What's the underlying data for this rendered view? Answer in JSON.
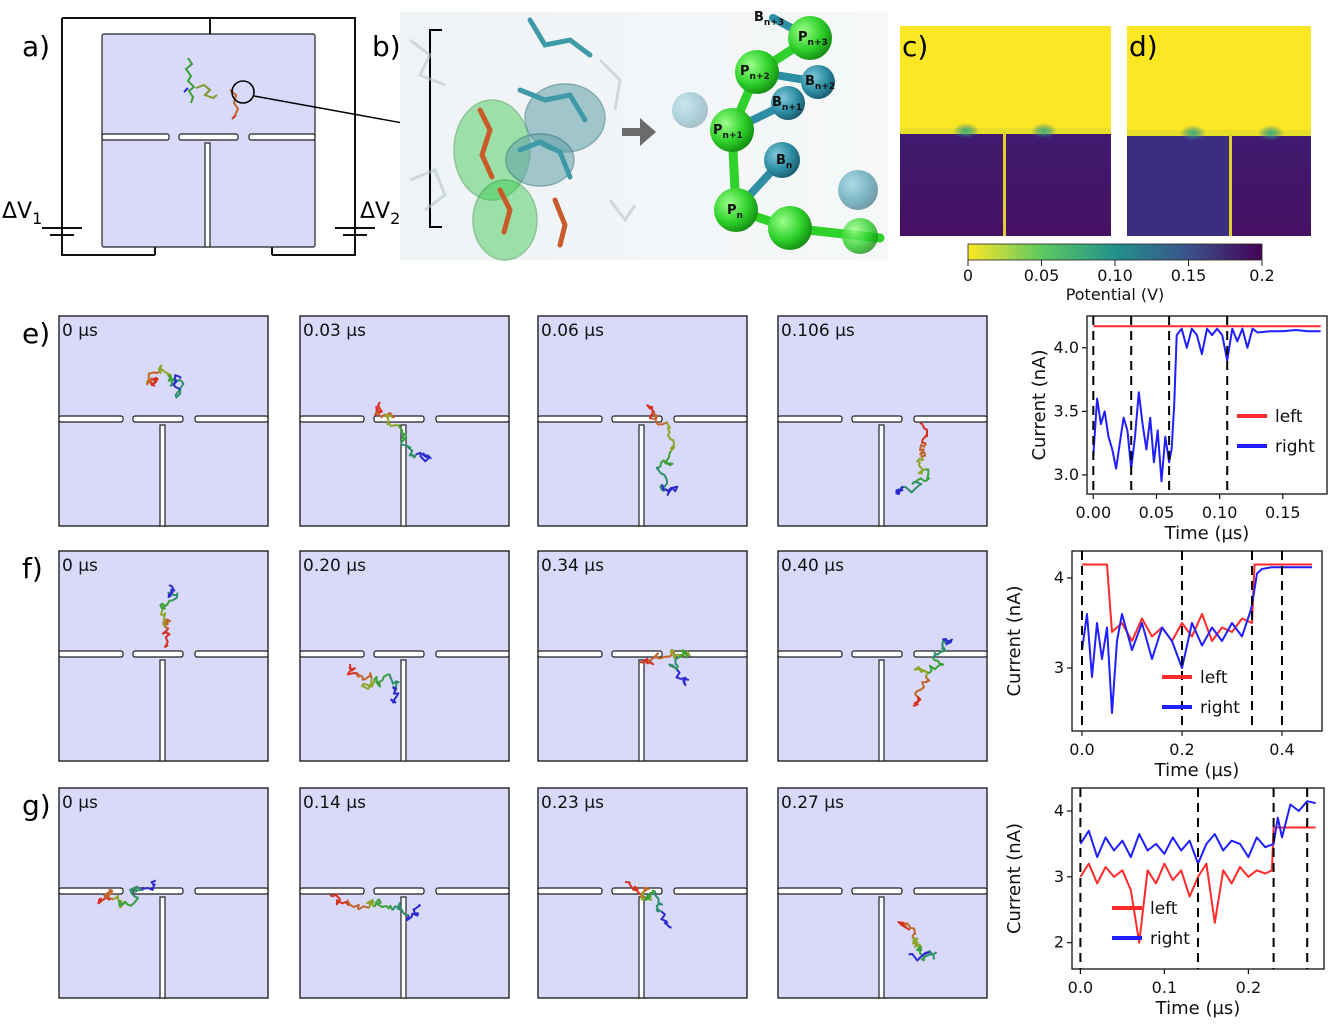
{
  "panel_letters": {
    "a": "a)",
    "b": "b)",
    "c": "c)",
    "d": "d)",
    "e": "e)",
    "f": "f)",
    "g": "g)"
  },
  "circuit": {
    "v1_label": "ΔV",
    "v1_sub": "1",
    "v2_label": "ΔV",
    "v2_sub": "2"
  },
  "cg_labels": {
    "bn3": "B",
    "bn3_sub": "n+3",
    "pn3": "P",
    "pn3_sub": "n+3",
    "pn2": "P",
    "pn2_sub": "n+2",
    "bn2": "B",
    "bn2_sub": "n+2",
    "bn1": "B",
    "bn1_sub": "n+1",
    "pn1": "P",
    "pn1_sub": "n+1",
    "bn": "B",
    "bn_sub": "n",
    "pn": "P",
    "pn_sub": "n"
  },
  "colorbar": {
    "ticks": [
      "0",
      "0.05",
      "0.10",
      "0.15",
      "0.2"
    ],
    "label": "Potential (V)"
  },
  "snapshots": {
    "e": [
      "0 µs",
      "0.03 µs",
      "0.06 µs",
      "0.106 µs"
    ],
    "f": [
      "0 µs",
      "0.20 µs",
      "0.34 µs",
      "0.40 µs"
    ],
    "g": [
      "0 µs",
      "0.14 µs",
      "0.23 µs",
      "0.27 µs"
    ]
  },
  "colors": {
    "left": "#ff2a2a",
    "right": "#1f1fff",
    "chamber_fill": "#d9dafa",
    "dashed": "#000000"
  },
  "chart_data": [
    {
      "type": "line",
      "panel": "e",
      "xlabel": "Time (µs)",
      "ylabel": "Current (nA)",
      "xlim": [
        -0.005,
        0.185
      ],
      "ylim": [
        2.85,
        4.25
      ],
      "xticks": [
        0.0,
        0.05,
        0.1,
        0.15
      ],
      "xtick_labels": [
        "0.00",
        "0.05",
        "0.10",
        "0.15"
      ],
      "yticks": [
        3.0,
        3.5,
        4.0
      ],
      "ytick_labels": [
        "3.0",
        "3.5",
        "4.0"
      ],
      "vlines": [
        0.0,
        0.03,
        0.06,
        0.106
      ],
      "legend": "right",
      "series": [
        {
          "name": "left",
          "x": [
            0.0,
            0.18
          ],
          "values": [
            4.17,
            4.17
          ]
        },
        {
          "name": "right",
          "x": [
            0.0,
            0.003,
            0.006,
            0.009,
            0.012,
            0.015,
            0.018,
            0.021,
            0.024,
            0.027,
            0.03,
            0.033,
            0.036,
            0.039,
            0.042,
            0.045,
            0.048,
            0.051,
            0.054,
            0.057,
            0.06,
            0.062,
            0.064,
            0.066,
            0.07,
            0.074,
            0.078,
            0.082,
            0.086,
            0.09,
            0.094,
            0.098,
            0.102,
            0.106,
            0.11,
            0.114,
            0.118,
            0.122,
            0.126,
            0.13,
            0.14,
            0.15,
            0.16,
            0.17,
            0.18
          ],
          "values": [
            3.15,
            3.6,
            3.4,
            3.5,
            3.3,
            3.2,
            3.05,
            3.25,
            3.45,
            3.35,
            3.05,
            3.3,
            3.65,
            3.4,
            3.2,
            3.45,
            3.1,
            3.35,
            2.95,
            3.3,
            3.1,
            3.2,
            3.55,
            4.1,
            4.15,
            4.0,
            4.15,
            4.1,
            3.95,
            4.15,
            4.1,
            4.15,
            4.1,
            3.9,
            4.15,
            4.05,
            4.15,
            4.0,
            4.15,
            4.12,
            4.13,
            4.13,
            4.14,
            4.13,
            4.13
          ]
        }
      ]
    },
    {
      "type": "line",
      "panel": "f",
      "xlabel": "Time (µs)",
      "ylabel": "Current (nA)",
      "xlim": [
        -0.02,
        0.48
      ],
      "ylim": [
        2.3,
        4.3
      ],
      "xticks": [
        0.0,
        0.2,
        0.4
      ],
      "xtick_labels": [
        "0.0",
        "0.2",
        "0.4"
      ],
      "yticks": [
        3,
        4
      ],
      "ytick_labels": [
        "3",
        "4"
      ],
      "vlines": [
        0.0,
        0.2,
        0.34,
        0.4
      ],
      "legend": "bottom-center",
      "series": [
        {
          "name": "left",
          "x": [
            0.0,
            0.05,
            0.06,
            0.08,
            0.1,
            0.12,
            0.14,
            0.16,
            0.18,
            0.2,
            0.22,
            0.24,
            0.26,
            0.28,
            0.3,
            0.32,
            0.34,
            0.345,
            0.38,
            0.42,
            0.46
          ],
          "values": [
            4.15,
            4.15,
            3.4,
            3.5,
            3.3,
            3.55,
            3.35,
            3.45,
            3.3,
            3.5,
            3.35,
            3.6,
            3.3,
            3.45,
            3.4,
            3.55,
            3.5,
            4.15,
            4.15,
            4.15,
            4.15
          ]
        },
        {
          "name": "right",
          "x": [
            0.0,
            0.01,
            0.02,
            0.03,
            0.04,
            0.05,
            0.06,
            0.07,
            0.08,
            0.1,
            0.12,
            0.14,
            0.16,
            0.18,
            0.2,
            0.22,
            0.24,
            0.26,
            0.28,
            0.3,
            0.32,
            0.335,
            0.34,
            0.35,
            0.36,
            0.38,
            0.42,
            0.46
          ],
          "values": [
            3.2,
            3.6,
            2.9,
            3.5,
            3.1,
            3.45,
            2.5,
            3.3,
            3.6,
            3.2,
            3.5,
            3.1,
            3.45,
            3.3,
            3.0,
            3.5,
            3.25,
            3.45,
            3.3,
            3.5,
            3.35,
            3.6,
            3.7,
            4.05,
            4.1,
            4.12,
            4.12,
            4.12
          ]
        }
      ]
    },
    {
      "type": "line",
      "panel": "g",
      "xlabel": "Time (µs)",
      "ylabel": "Current (nA)",
      "xlim": [
        -0.01,
        0.29
      ],
      "ylim": [
        1.6,
        4.35
      ],
      "xticks": [
        0.0,
        0.1,
        0.2
      ],
      "xtick_labels": [
        "0.0",
        "0.1",
        "0.2"
      ],
      "yticks": [
        2,
        3,
        4
      ],
      "ytick_labels": [
        "2",
        "3",
        "4"
      ],
      "vlines": [
        0.0,
        0.14,
        0.23,
        0.27
      ],
      "legend": "bottom-left",
      "series": [
        {
          "name": "left",
          "x": [
            0.0,
            0.01,
            0.02,
            0.03,
            0.04,
            0.05,
            0.06,
            0.07,
            0.08,
            0.09,
            0.1,
            0.11,
            0.12,
            0.13,
            0.14,
            0.15,
            0.16,
            0.17,
            0.18,
            0.19,
            0.2,
            0.21,
            0.22,
            0.228,
            0.23,
            0.25,
            0.28
          ],
          "values": [
            3.0,
            3.2,
            2.9,
            3.15,
            3.0,
            3.1,
            2.8,
            2.0,
            3.1,
            2.9,
            3.2,
            2.95,
            3.1,
            2.7,
            3.0,
            3.2,
            2.3,
            3.1,
            2.9,
            3.15,
            3.0,
            3.1,
            3.05,
            3.1,
            3.75,
            3.75,
            3.75
          ]
        },
        {
          "name": "right",
          "x": [
            0.0,
            0.01,
            0.02,
            0.03,
            0.04,
            0.05,
            0.06,
            0.07,
            0.08,
            0.09,
            0.1,
            0.11,
            0.12,
            0.13,
            0.14,
            0.15,
            0.16,
            0.17,
            0.18,
            0.19,
            0.2,
            0.21,
            0.22,
            0.23,
            0.235,
            0.24,
            0.25,
            0.26,
            0.27,
            0.28
          ],
          "values": [
            3.5,
            3.7,
            3.3,
            3.6,
            3.4,
            3.55,
            3.3,
            3.65,
            3.4,
            3.5,
            3.35,
            3.6,
            3.4,
            3.55,
            3.2,
            3.5,
            3.65,
            3.4,
            3.55,
            3.5,
            3.3,
            3.6,
            3.45,
            3.5,
            3.9,
            3.6,
            4.1,
            4.0,
            4.15,
            4.12
          ]
        }
      ]
    }
  ]
}
